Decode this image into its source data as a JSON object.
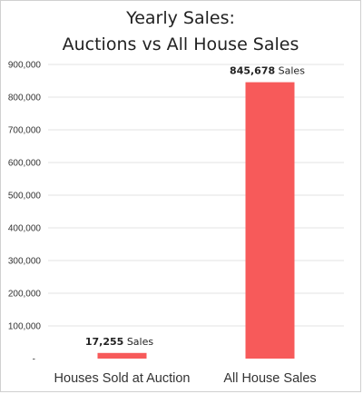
{
  "chart_data": {
    "type": "bar",
    "title_line1": "Yearly Sales:",
    "title_line2": "Auctions vs All House Sales",
    "categories": [
      "Houses Sold at Auction",
      "All House Sales"
    ],
    "values": [
      17255,
      845678
    ],
    "value_labels": [
      "17,255",
      "845,678"
    ],
    "value_suffix": "Sales",
    "ylim": [
      0,
      900000
    ],
    "yticks": [
      0,
      100000,
      200000,
      300000,
      400000,
      500000,
      600000,
      700000,
      800000,
      900000
    ],
    "ytick_labels": [
      "-",
      "100,000",
      "200,000",
      "300,000",
      "400,000",
      "500,000",
      "600,000",
      "700,000",
      "800,000",
      "900,000"
    ],
    "grid": true,
    "bar_color": "#f75a5a",
    "grid_color": "#e3e3e3"
  }
}
